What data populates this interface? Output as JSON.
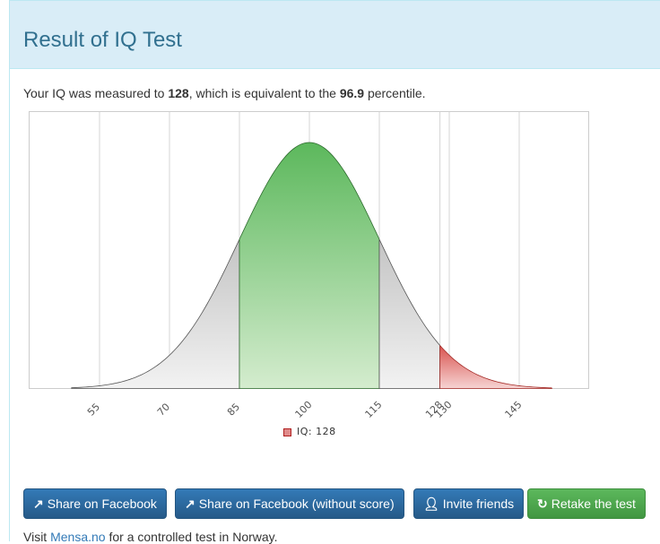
{
  "panel": {
    "title": "Result of IQ Test"
  },
  "result": {
    "prefix": "Your IQ was measured to ",
    "iq": "128",
    "middle": ", which is equivalent to the ",
    "percentile": "96.9",
    "suffix": " percentile."
  },
  "chart_data": {
    "type": "area",
    "title": "",
    "xlabel": "",
    "ylabel": "",
    "xlim": [
      40,
      160
    ],
    "x_ticks": [
      55,
      70,
      85,
      100,
      115,
      128,
      130,
      145
    ],
    "x_tick_labels": [
      "55",
      "70",
      "85",
      "100",
      "115",
      "128",
      "130",
      "145"
    ],
    "distribution": {
      "mean": 100,
      "sd": 15,
      "curve_range": [
        49,
        152
      ]
    },
    "regions": [
      {
        "from": 49,
        "to": 85,
        "color": "#cccccc"
      },
      {
        "from": 85,
        "to": 115,
        "color": "#5cb85c"
      },
      {
        "from": 115,
        "to": 128,
        "color": "#cccccc"
      },
      {
        "from": 128,
        "to": 152,
        "color": "#d9534f"
      }
    ],
    "marker": {
      "label": "IQ: 128",
      "value": 128
    },
    "grid": true,
    "legend_placement": "bottom"
  },
  "buttons": {
    "share_fb": "Share on Facebook",
    "share_fb_noscore": "Share on Facebook (without score)",
    "invite": "Invite friends",
    "retake": "Retake the test"
  },
  "footer": {
    "prefix": "Visit ",
    "link": "Mensa.no",
    "suffix": " for a controlled test in Norway."
  }
}
